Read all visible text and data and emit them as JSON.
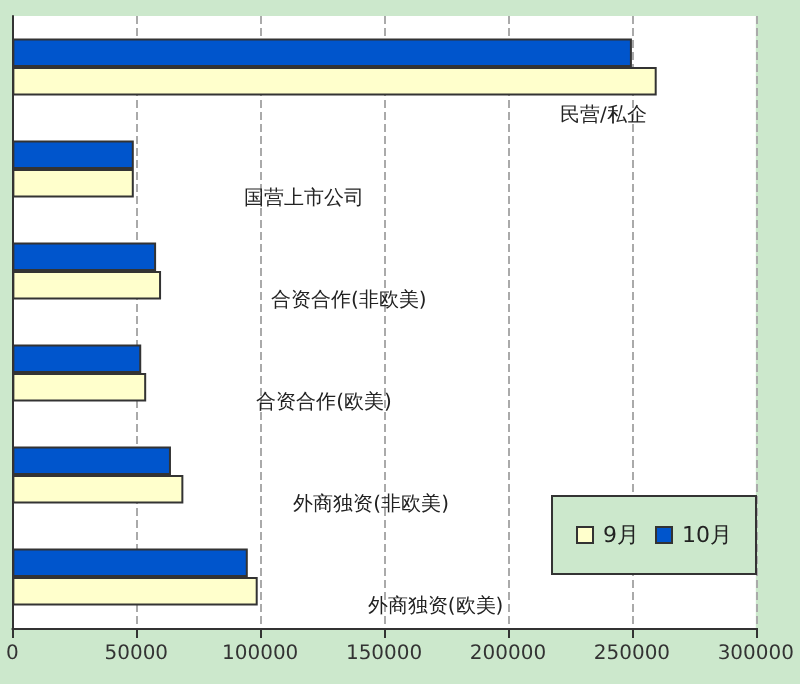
{
  "chart_data": {
    "type": "bar",
    "orientation": "horizontal",
    "categories": [
      "民营/私企",
      "国营上市公司",
      "合资合作(非欧美)",
      "合资合作(欧美)",
      "外商独资(非欧美)",
      "外商独资(欧美)"
    ],
    "series": [
      {
        "name": "10月",
        "color": "#0055cc",
        "values": [
          250000,
          49000,
          58000,
          52000,
          64000,
          95000
        ]
      },
      {
        "name": "9月",
        "color": "#ffffcc",
        "values": [
          260000,
          49000,
          60000,
          54000,
          69000,
          99000
        ]
      }
    ],
    "xlim": [
      0,
      300000
    ],
    "xticks": [
      0,
      50000,
      100000,
      150000,
      200000,
      250000,
      300000
    ],
    "grid": "x",
    "legend": "bottom right"
  }
}
